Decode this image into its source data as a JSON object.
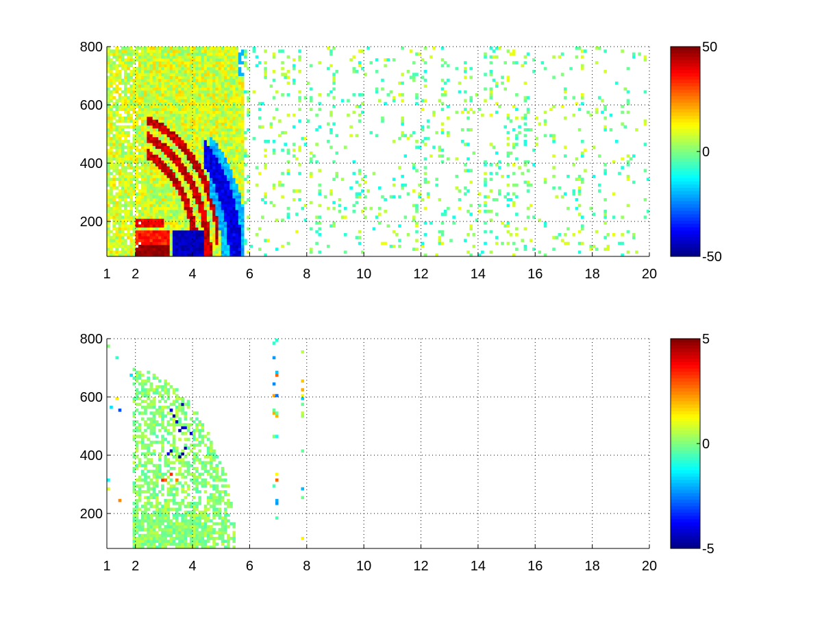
{
  "chart_data": [
    {
      "type": "heatmap",
      "title": "",
      "xlabel": "",
      "ylabel": "",
      "xlim": [
        1,
        20
      ],
      "ylim": [
        80,
        800
      ],
      "xticks": [
        1,
        2,
        4,
        6,
        8,
        10,
        12,
        14,
        16,
        18,
        20
      ],
      "xtick_labels": [
        "1",
        "2",
        "4",
        "6",
        "8",
        "10",
        "12",
        "14",
        "16",
        "18",
        "20"
      ],
      "yticks": [
        200,
        400,
        600,
        800
      ],
      "ytick_labels": [
        "200",
        "400",
        "600",
        "800"
      ],
      "grid": "dotted",
      "colorbar": {
        "colormap": "jet",
        "clim": [
          -50,
          50
        ],
        "ticks": [
          -50,
          0,
          50
        ],
        "tick_labels": [
          "-50",
          "0",
          "50"
        ]
      },
      "features": [
        {
          "name": "positive ridges (red)",
          "x_range": [
            2.5,
            4.8
          ],
          "y_range": [
            240,
            540
          ],
          "value": 40
        },
        {
          "name": "negative ridge (blue)",
          "x_range": [
            4.5,
            5.8
          ],
          "y_range": [
            250,
            600
          ],
          "value": -40
        },
        {
          "name": "low band red",
          "x_range": [
            2,
            3
          ],
          "y_range": [
            80,
            200
          ],
          "value": 45
        },
        {
          "name": "low band blue",
          "x_range": [
            3.3,
            4.5
          ],
          "y_range": [
            80,
            160
          ],
          "value": -45
        },
        {
          "name": "scattered columns",
          "x_range": [
            6,
            20
          ],
          "y_range": [
            80,
            800
          ],
          "value_range": [
            -10,
            10
          ]
        }
      ]
    },
    {
      "type": "heatmap",
      "title": "",
      "xlabel": "",
      "ylabel": "",
      "xlim": [
        1,
        20
      ],
      "ylim": [
        80,
        800
      ],
      "xticks": [
        1,
        2,
        4,
        6,
        8,
        10,
        12,
        14,
        16,
        18,
        20
      ],
      "xtick_labels": [
        "1",
        "2",
        "4",
        "6",
        "8",
        "10",
        "12",
        "14",
        "16",
        "18",
        "20"
      ],
      "yticks": [
        200,
        400,
        600,
        800
      ],
      "ytick_labels": [
        "200",
        "400",
        "600",
        "800"
      ],
      "grid": "dotted",
      "colorbar": {
        "colormap": "jet",
        "clim": [
          -5,
          5
        ],
        "ticks": [
          -5,
          0,
          5
        ],
        "tick_labels": [
          "-5",
          "0",
          "5"
        ]
      },
      "features": [
        {
          "name": "main region",
          "x_range": [
            1.9,
            5.8
          ],
          "y_range": [
            80,
            780
          ],
          "value_range": [
            -1,
            1
          ]
        },
        {
          "name": "negative streaks (blue)",
          "x_range": [
            2.8,
            4.2
          ],
          "y_range": [
            380,
            600
          ],
          "value": -4
        },
        {
          "name": "positive patch (orange)",
          "x_range": [
            2.9,
            3.5
          ],
          "y_range": [
            300,
            360
          ],
          "value": 3
        },
        {
          "name": "isolated columns",
          "x_range": [
            6.8,
            7.9
          ],
          "y_range": [
            80,
            780
          ],
          "value_range": [
            -3,
            3
          ]
        }
      ]
    }
  ]
}
